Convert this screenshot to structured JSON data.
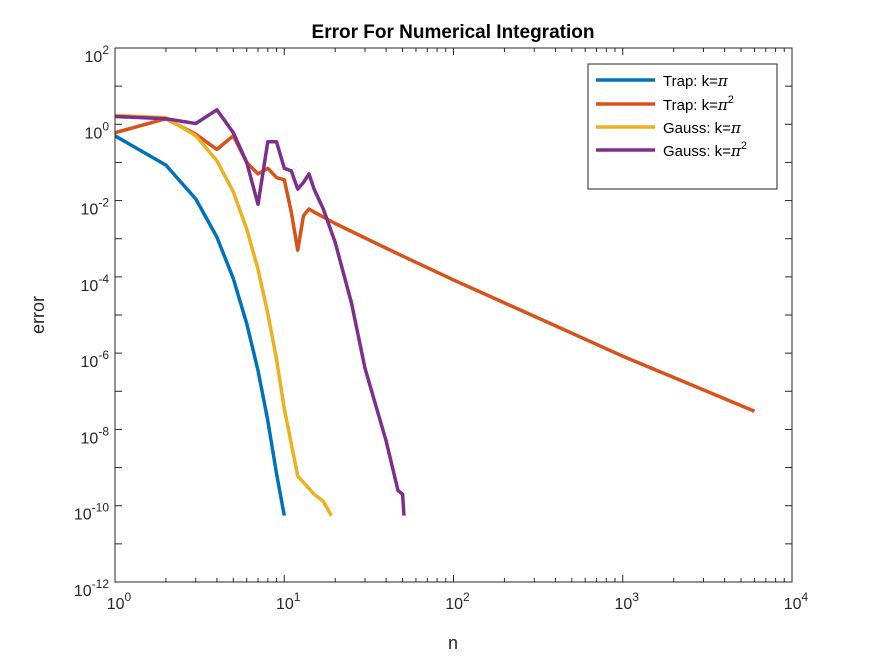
{
  "chart_data": {
    "type": "line",
    "title": "Error For Numerical Integration",
    "xlabel": "n",
    "ylabel": "error",
    "xscale": "log",
    "yscale": "log",
    "xlim": [
      1,
      10000
    ],
    "ylim": [
      1e-12,
      100
    ],
    "grid": false,
    "legend_position": "top-right",
    "x_ticks": [
      {
        "value": 1,
        "base": "10",
        "exp": "0"
      },
      {
        "value": 10,
        "base": "10",
        "exp": "1"
      },
      {
        "value": 100,
        "base": "10",
        "exp": "2"
      },
      {
        "value": 1000,
        "base": "10",
        "exp": "3"
      },
      {
        "value": 10000,
        "base": "10",
        "exp": "4"
      }
    ],
    "y_ticks": [
      {
        "value": 1e-12,
        "base": "10",
        "exp": "-12"
      },
      {
        "value": 1e-10,
        "base": "10",
        "exp": "-10"
      },
      {
        "value": 1e-08,
        "base": "10",
        "exp": "-8"
      },
      {
        "value": 1e-06,
        "base": "10",
        "exp": "-6"
      },
      {
        "value": 0.0001,
        "base": "10",
        "exp": "-4"
      },
      {
        "value": 0.01,
        "base": "10",
        "exp": "-2"
      },
      {
        "value": 1,
        "base": "10",
        "exp": "0"
      },
      {
        "value": 100,
        "base": "10",
        "exp": "2"
      }
    ],
    "series": [
      {
        "legend_prefix": "Trap: k=",
        "legend_symbol": "π",
        "legend_sup": "",
        "color": "#0072BD",
        "points": [
          [
            1,
            0.5
          ],
          [
            2,
            0.085
          ],
          [
            3,
            0.011
          ],
          [
            4,
            0.0011
          ],
          [
            5,
            9e-05
          ],
          [
            6,
            6e-06
          ],
          [
            7,
            3.5e-07
          ],
          [
            8,
            1.7e-08
          ],
          [
            9,
            7e-10
          ],
          [
            10,
            5.5e-11
          ]
        ]
      },
      {
        "legend_prefix": "Trap: k=",
        "legend_symbol": "π",
        "legend_sup": "2",
        "color": "#D95319",
        "points": [
          [
            1,
            0.6
          ],
          [
            2,
            1.4
          ],
          [
            3,
            0.55
          ],
          [
            4,
            0.22
          ],
          [
            5,
            0.5
          ],
          [
            6,
            0.1
          ],
          [
            7,
            0.05
          ],
          [
            8,
            0.07
          ],
          [
            9,
            0.04
          ],
          [
            10,
            0.035
          ],
          [
            11,
            0.005
          ],
          [
            12,
            0.0005
          ],
          [
            13,
            0.004
          ],
          [
            14,
            0.006
          ],
          [
            15,
            0.005
          ],
          [
            20,
            0.0025
          ],
          [
            50,
            0.00035
          ],
          [
            100,
            8.33e-05
          ],
          [
            1000,
            8.3e-07
          ],
          [
            6000,
            3e-08
          ]
        ]
      },
      {
        "legend_prefix": "Gauss: k=",
        "legend_symbol": "π",
        "legend_sup": "",
        "color": "#EDB120",
        "points": [
          [
            1,
            1.7
          ],
          [
            2,
            1.5
          ],
          [
            3,
            0.5
          ],
          [
            4,
            0.11
          ],
          [
            5,
            0.017
          ],
          [
            6,
            0.0018
          ],
          [
            7,
            0.00016
          ],
          [
            8,
            1.1e-05
          ],
          [
            9,
            7e-07
          ],
          [
            10,
            3.5e-08
          ],
          [
            12,
            6e-10
          ],
          [
            15,
            2e-10
          ],
          [
            17,
            1.3e-10
          ],
          [
            19,
            5.5e-11
          ]
        ]
      },
      {
        "legend_prefix": "Gauss: k=",
        "legend_symbol": "π",
        "legend_sup": "2",
        "color": "#7E2F8E",
        "points": [
          [
            1,
            1.6
          ],
          [
            2,
            1.4
          ],
          [
            3,
            1.05
          ],
          [
            4,
            2.4
          ],
          [
            5,
            0.6
          ],
          [
            6,
            0.1
          ],
          [
            7,
            0.008
          ],
          [
            8,
            0.35
          ],
          [
            9,
            0.35
          ],
          [
            10,
            0.07
          ],
          [
            11,
            0.06
          ],
          [
            12,
            0.02
          ],
          [
            13,
            0.03
          ],
          [
            14,
            0.05
          ],
          [
            15,
            0.02
          ],
          [
            17,
            0.006
          ],
          [
            20,
            0.0008
          ],
          [
            25,
            2e-05
          ],
          [
            30,
            4e-07
          ],
          [
            40,
            5e-09
          ],
          [
            47,
            2.5e-10
          ],
          [
            50,
            2e-10
          ],
          [
            51,
            5.5e-11
          ]
        ]
      }
    ]
  }
}
